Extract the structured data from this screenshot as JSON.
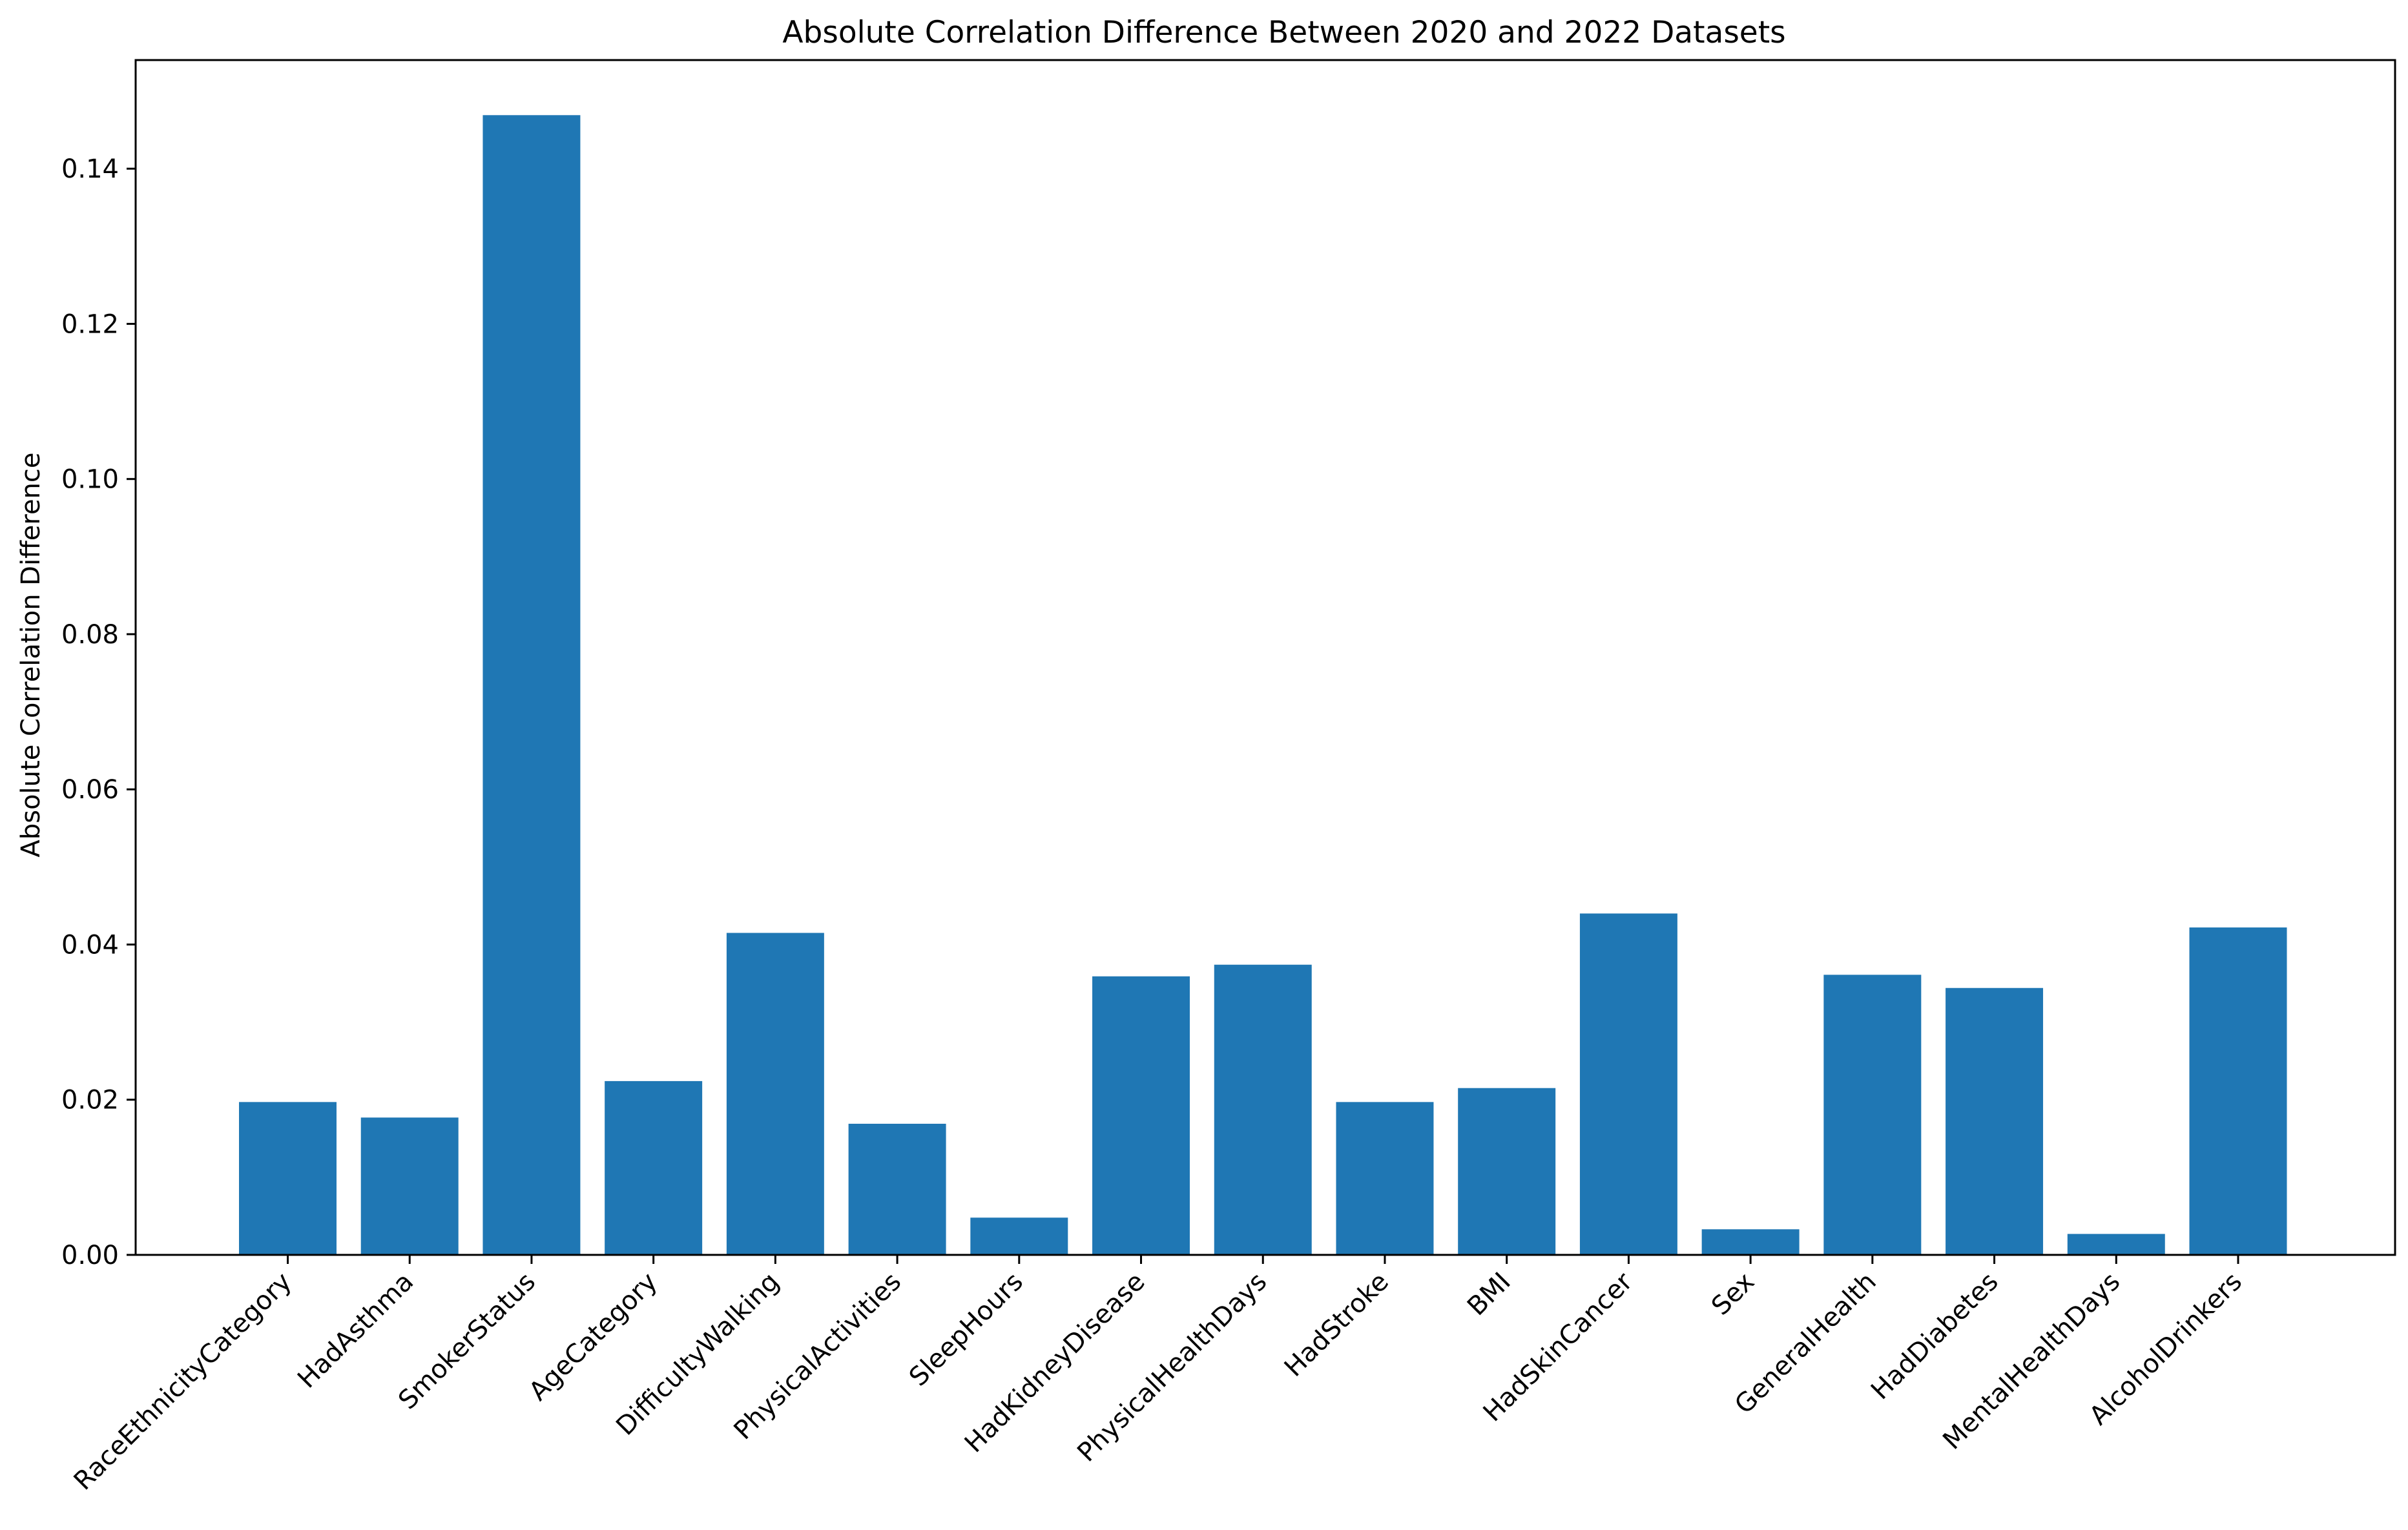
{
  "chart_data": {
    "type": "bar",
    "title": "Absolute Correlation Difference Between 2020 and 2022 Datasets",
    "xlabel": "",
    "ylabel": "Absolute Correlation Difference",
    "ylim": [
      0,
      0.154
    ],
    "yticks": [
      0.0,
      0.02,
      0.04,
      0.06,
      0.08,
      0.1,
      0.12,
      0.14
    ],
    "ytick_labels": [
      "0.00",
      "0.02",
      "0.04",
      "0.06",
      "0.08",
      "0.10",
      "0.12",
      "0.14"
    ],
    "categories": [
      "RaceEthnicityCategory",
      "HadAsthma",
      "SmokerStatus",
      "AgeCategory",
      "DifficultyWalking",
      "PhysicalActivities",
      "SleepHours",
      "HadKidneyDisease",
      "PhysicalHealthDays",
      "HadStroke",
      "BMI",
      "HadSkinCancer",
      "Sex",
      "GeneralHealth",
      "HadDiabetes",
      "MentalHealthDays",
      "AlcoholDrinkers"
    ],
    "values": [
      0.0197,
      0.0177,
      0.1469,
      0.0224,
      0.0415,
      0.0169,
      0.0048,
      0.0359,
      0.0374,
      0.0197,
      0.0215,
      0.044,
      0.0033,
      0.0361,
      0.0344,
      0.0027,
      0.0422
    ],
    "bar_color": "#1f77b4",
    "grid": false,
    "legend": "none"
  }
}
